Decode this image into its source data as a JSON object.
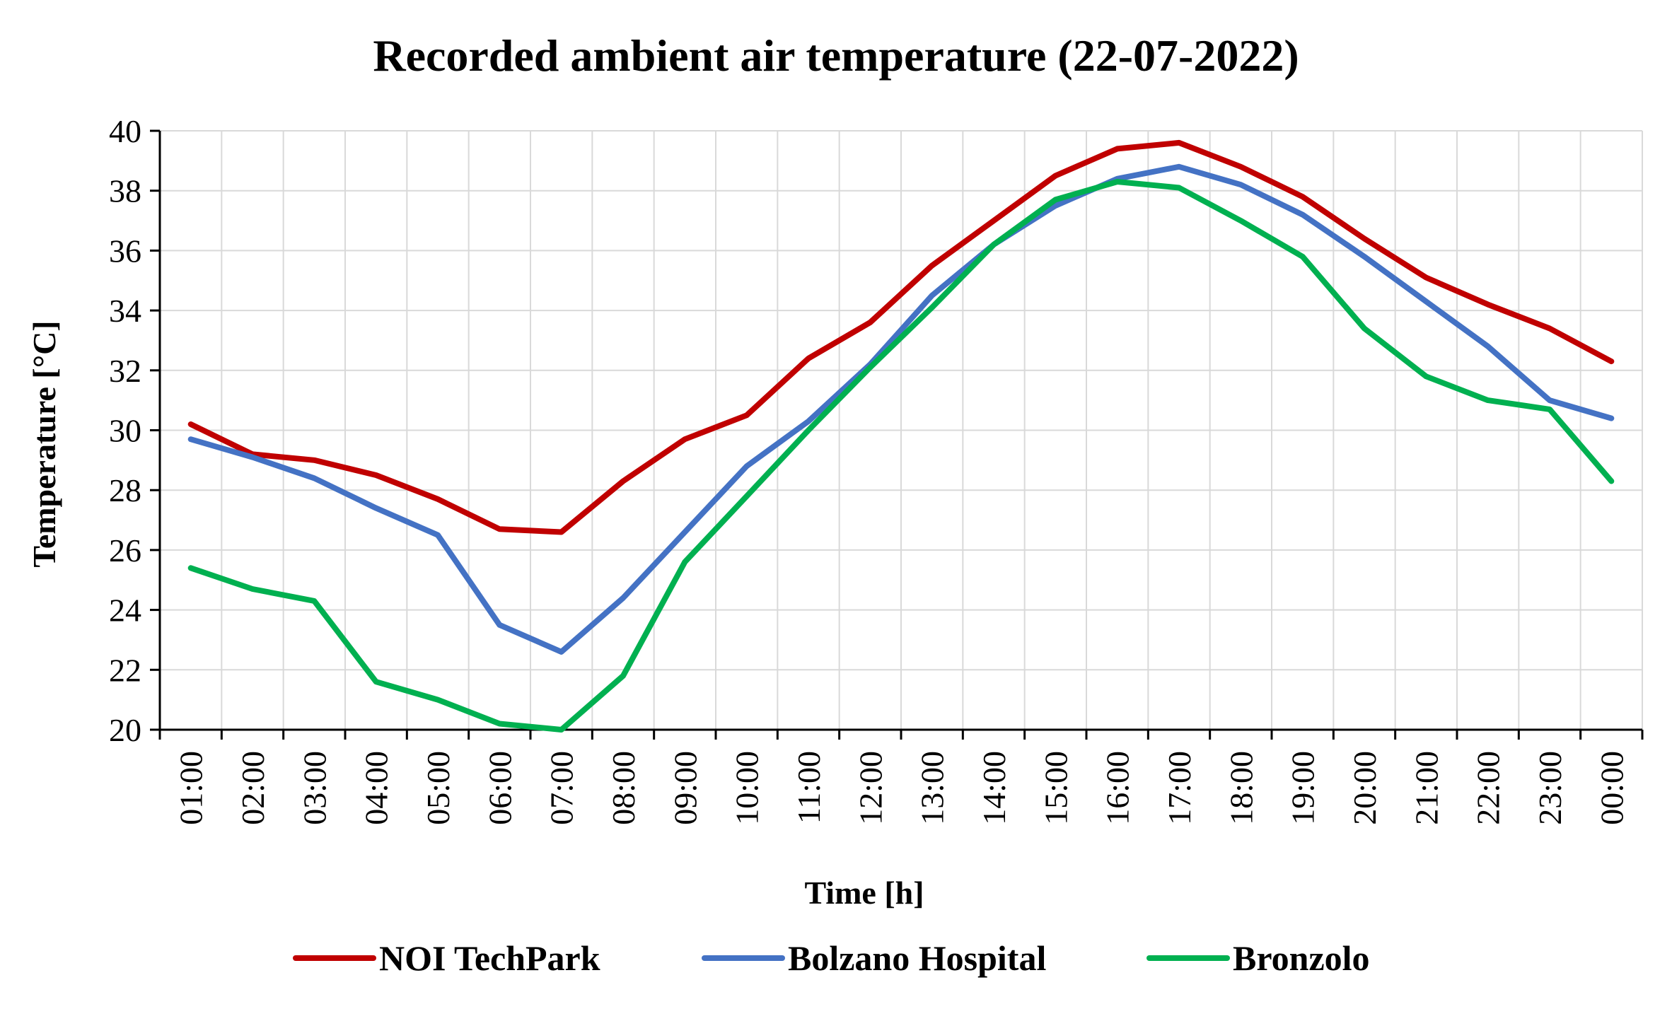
{
  "chart_data": {
    "type": "line",
    "title": "Recorded ambient air temperature (22-07-2022)",
    "xlabel": "Time [h]",
    "ylabel": "Temperature [°C]",
    "ylim": [
      20,
      40
    ],
    "yticks": [
      20,
      22,
      24,
      26,
      28,
      30,
      32,
      34,
      36,
      38,
      40
    ],
    "grid": true,
    "legend_position": "bottom",
    "categories": [
      "01:00",
      "02:00",
      "03:00",
      "04:00",
      "05:00",
      "06:00",
      "07:00",
      "08:00",
      "09:00",
      "10:00",
      "11:00",
      "12:00",
      "13:00",
      "14:00",
      "15:00",
      "16:00",
      "17:00",
      "18:00",
      "19:00",
      "20:00",
      "21:00",
      "22:00",
      "23:00",
      "00:00"
    ],
    "series": [
      {
        "name": "NOI TechPark",
        "color": "#c00000",
        "values": [
          30.2,
          29.2,
          29.0,
          28.5,
          27.7,
          26.7,
          26.6,
          28.3,
          29.7,
          30.5,
          32.4,
          33.6,
          35.5,
          37.0,
          38.5,
          39.4,
          39.6,
          38.8,
          37.8,
          36.4,
          35.1,
          34.2,
          33.4,
          32.3
        ]
      },
      {
        "name": "Bolzano Hospital",
        "color": "#4472c4",
        "values": [
          29.7,
          29.1,
          28.4,
          27.4,
          26.5,
          23.5,
          22.6,
          24.4,
          26.6,
          28.8,
          30.3,
          32.2,
          34.5,
          36.2,
          37.5,
          38.4,
          38.8,
          38.2,
          37.2,
          35.8,
          34.3,
          32.8,
          31.0,
          30.4
        ]
      },
      {
        "name": "Bronzolo",
        "color": "#00b050",
        "values": [
          25.4,
          24.7,
          24.3,
          21.6,
          21.0,
          20.2,
          20.0,
          21.8,
          25.6,
          27.8,
          30.0,
          32.1,
          34.1,
          36.2,
          37.7,
          38.3,
          38.1,
          37.0,
          35.8,
          33.4,
          31.8,
          31.0,
          30.7,
          28.3
        ]
      }
    ]
  }
}
